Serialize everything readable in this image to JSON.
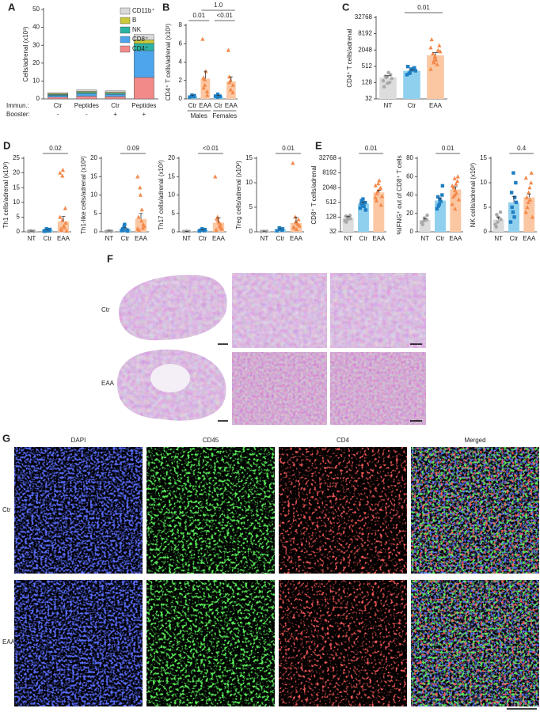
{
  "chart_data": [
    {
      "type": "stackedbar",
      "panel": "A",
      "ylabel": "Cells/adrenal (x10³)",
      "ylim": [
        0,
        50
      ],
      "yticks": [
        0,
        10,
        20,
        30,
        40,
        50
      ],
      "categories": [
        "Ctr",
        "Peptides",
        "Ctr",
        "Peptides"
      ],
      "row_labels": [
        "Immun.:",
        "Booster:"
      ],
      "booster": [
        "-",
        "-",
        "+",
        "+"
      ],
      "legend": "upper right",
      "series": [
        {
          "name": "CD4⁺",
          "color": "#f28a8a",
          "values": [
            1,
            1.5,
            1.3,
            12
          ]
        },
        {
          "name": "CD8⁺",
          "color": "#4da6ec",
          "values": [
            1,
            1.5,
            1.3,
            15
          ]
        },
        {
          "name": "NK",
          "color": "#2bb3a3",
          "values": [
            0.5,
            0.7,
            0.6,
            4
          ]
        },
        {
          "name": "B",
          "color": "#c9c93a",
          "values": [
            0.5,
            0.5,
            0.5,
            2
          ]
        },
        {
          "name": "CD11b⁺",
          "color": "#d9d9d9",
          "values": [
            0.5,
            0.8,
            0.8,
            3
          ]
        }
      ]
    },
    {
      "type": "bar",
      "panel": "B",
      "ylabel": "CD4⁺ T cells/adrenal (x10³)",
      "ylim": [
        0,
        8
      ],
      "yticks": [
        0,
        2,
        4,
        6,
        8
      ],
      "categories": [
        "Ctr",
        "EAA",
        "Ctr",
        "EAA"
      ],
      "groups": [
        "Males",
        "Females"
      ],
      "values": [
        0.3,
        2.2,
        0.3,
        1.9
      ],
      "errors": [
        0.1,
        0.8,
        0.1,
        0.5
      ],
      "bar_colors": [
        "#8fd0ee",
        "#fbc7a2",
        "#8fd0ee",
        "#fbc7a2"
      ],
      "point_colors": [
        "#1f7fc4",
        "#f4894b",
        "#1f7fc4",
        "#f4894b"
      ],
      "markers": [
        "square",
        "triangle",
        "square",
        "triangle"
      ],
      "points": [
        [
          0.2,
          0.3,
          0.4,
          0.25,
          0.35
        ],
        [
          6.5,
          2.1,
          1.5,
          0.8,
          0.4,
          2.3,
          1.2,
          3.0
        ],
        [
          0.3,
          0.2,
          0.5,
          0.3,
          0.25
        ],
        [
          5.3,
          2.0,
          1.0,
          0.7,
          1.5,
          2.4,
          1.8
        ]
      ],
      "annotations": [
        {
          "text": "0.01",
          "between": [
            0,
            1
          ]
        },
        {
          "text": "<0.01",
          "between": [
            2,
            3
          ]
        },
        {
          "text": "1.0",
          "between": [
            1,
            3
          ]
        }
      ]
    },
    {
      "type": "bar",
      "panel": "C",
      "ylabel": "CD4⁺ T cells/adrenal",
      "log_scale": true,
      "log_base": 2,
      "ylim": [
        32,
        32768
      ],
      "yticks": [
        32,
        128,
        512,
        2048,
        8192,
        32768
      ],
      "categories": [
        "NT",
        "Ctr",
        "EAA"
      ],
      "values": [
        200,
        350,
        1300
      ],
      "errors": [
        30,
        30,
        350
      ],
      "bar_colors": [
        "#dcdcdc",
        "#8fd0ee",
        "#fbc7a2"
      ],
      "point_colors": [
        "#a8a8a8",
        "#1f7fc4",
        "#f4894b"
      ],
      "markers": [
        "circle",
        "square",
        "triangle"
      ],
      "points": [
        [
          150,
          200,
          120,
          250,
          180,
          90,
          220,
          300,
          130
        ],
        [
          250,
          300,
          400,
          450,
          350,
          500,
          280,
          380,
          420
        ],
        [
          400,
          800,
          1200,
          2000,
          3000,
          5000,
          1500,
          900,
          600,
          1800,
          2500,
          700,
          1100
        ]
      ],
      "annotations": [
        {
          "text": "0.01",
          "between": [
            1,
            2
          ]
        }
      ]
    },
    {
      "type": "bar",
      "panel": "D",
      "ylabel": "Th1 cells/adrenal (x10²)",
      "ylim": [
        0,
        25
      ],
      "yticks": [
        0,
        5,
        10,
        15,
        20,
        25
      ],
      "categories": [
        "NT",
        "Ctr",
        "EAA"
      ],
      "values": [
        0.2,
        0.5,
        3.5
      ],
      "errors": [
        0.05,
        0.1,
        1.7
      ],
      "bar_colors": [
        "#dcdcdc",
        "#8fd0ee",
        "#fbc7a2"
      ],
      "point_colors": [
        "#a8a8a8",
        "#1f7fc4",
        "#f4894b"
      ],
      "markers": [
        "circle",
        "square",
        "triangle"
      ],
      "points": [
        [
          0.1,
          0.2,
          0.3,
          0.1,
          0.2,
          0.3,
          0.1
        ],
        [
          0.2,
          1.0,
          0.5,
          0.3,
          0.8,
          0.4,
          0.2,
          0.6
        ],
        [
          20,
          19,
          21,
          8,
          3,
          1,
          0.5,
          2,
          1.5,
          0.3,
          5,
          4
        ]
      ],
      "annotations": [
        {
          "text": "0.02",
          "between": [
            1,
            2
          ]
        }
      ]
    },
    {
      "type": "bar",
      "ylabel": "Th1-like cells/adrenal (x10²)",
      "ylim": [
        0,
        20
      ],
      "yticks": [
        0,
        5,
        10,
        15,
        20
      ],
      "categories": [
        "NT",
        "Ctr",
        "EAA"
      ],
      "values": [
        0.2,
        0.8,
        3.5
      ],
      "errors": [
        0.05,
        0.3,
        1.5
      ],
      "bar_colors": [
        "#dcdcdc",
        "#8fd0ee",
        "#fbc7a2"
      ],
      "point_colors": [
        "#a8a8a8",
        "#1f7fc4",
        "#f4894b"
      ],
      "markers": [
        "circle",
        "square",
        "triangle"
      ],
      "points": [
        [
          0.1,
          0.2,
          0.3,
          0.1,
          0.2,
          0.1
        ],
        [
          0.3,
          1.5,
          2,
          0.5,
          0.2,
          0.8,
          0.4
        ],
        [
          15,
          12,
          10,
          1,
          2,
          4,
          0.5,
          3,
          6,
          1.5,
          0.8
        ]
      ],
      "annotations": [
        {
          "text": "0.09",
          "between": [
            1,
            2
          ]
        }
      ]
    },
    {
      "type": "bar",
      "ylabel": "Th17 cells/adrenal (x10²)",
      "ylim": [
        0,
        20
      ],
      "yticks": [
        0,
        5,
        10,
        15,
        20
      ],
      "categories": [
        "NT",
        "Ctr",
        "EAA"
      ],
      "values": [
        0.1,
        0.4,
        2.5
      ],
      "errors": [
        0.02,
        0.1,
        1.3
      ],
      "bar_colors": [
        "#dcdcdc",
        "#8fd0ee",
        "#fbc7a2"
      ],
      "point_colors": [
        "#a8a8a8",
        "#1f7fc4",
        "#f4894b"
      ],
      "markers": [
        "circle",
        "square",
        "triangle"
      ],
      "points": [
        [
          0.1,
          0.1,
          0.2,
          0.1,
          0.1
        ],
        [
          0.2,
          0.5,
          0.8,
          0.3,
          0.6,
          0.4
        ],
        [
          15,
          4,
          3,
          2,
          1,
          0.5,
          3.5,
          2.5,
          1.5,
          0.8
        ]
      ],
      "annotations": [
        {
          "text": "<0.01",
          "between": [
            1,
            2
          ]
        }
      ]
    },
    {
      "type": "bar",
      "ylabel": "Treg cells/adrenal (x10²)",
      "ylim": [
        0,
        15
      ],
      "yticks": [
        0,
        5,
        10,
        15
      ],
      "categories": [
        "NT",
        "Ctr",
        "EAA"
      ],
      "values": [
        0.1,
        0.5,
        1.8
      ],
      "errors": [
        0.02,
        0.1,
        1.2
      ],
      "bar_colors": [
        "#dcdcdc",
        "#8fd0ee",
        "#fbc7a2"
      ],
      "point_colors": [
        "#a8a8a8",
        "#1f7fc4",
        "#f4894b"
      ],
      "markers": [
        "circle",
        "square",
        "triangle"
      ],
      "points": [
        [
          0.05,
          0.1,
          0.1,
          0.05,
          0.1
        ],
        [
          0.2,
          0.8,
          0.5,
          0.3,
          0.6
        ],
        [
          14,
          3,
          2,
          1.5,
          2.5,
          1,
          0.8,
          0.5,
          1.8,
          1.2
        ]
      ],
      "annotations": [
        {
          "text": "0.01",
          "between": [
            1,
            2
          ]
        }
      ]
    },
    {
      "type": "bar",
      "panel": "E",
      "ylabel": "CD8⁺ T cells/adrenal",
      "log_scale": true,
      "log_base": 2,
      "ylim": [
        32,
        32768
      ],
      "yticks": [
        32,
        128,
        512,
        2048,
        8192,
        32768
      ],
      "categories": [
        "NT",
        "Ctr",
        "EAA"
      ],
      "values": [
        120,
        450,
        1300
      ],
      "errors": [
        15,
        80,
        300
      ],
      "bar_colors": [
        "#dcdcdc",
        "#8fd0ee",
        "#fbc7a2"
      ],
      "point_colors": [
        "#a8a8a8",
        "#1f7fc4",
        "#f4894b"
      ],
      "markers": [
        "circle",
        "square",
        "triangle"
      ],
      "points": [
        [
          90,
          100,
          130,
          150,
          110,
          140,
          80
        ],
        [
          300,
          400,
          700,
          500,
          250,
          450,
          600,
          350
        ],
        [
          800,
          1500,
          3000,
          2000,
          400,
          600,
          1200,
          4000,
          1800,
          900,
          2500
        ]
      ],
      "annotations": [
        {
          "text": "0.01",
          "between": [
            1,
            2
          ]
        }
      ]
    },
    {
      "type": "bar",
      "ylabel": "%IFNG⁺ out of CD8⁺ T cells",
      "ylim": [
        0,
        80
      ],
      "yticks": [
        0,
        20,
        40,
        60,
        80
      ],
      "categories": [
        "NT",
        "Ctr",
        "EAA"
      ],
      "values": [
        13,
        34,
        46
      ],
      "errors": [
        1.5,
        3,
        3
      ],
      "bar_colors": [
        "#dcdcdc",
        "#8fd0ee",
        "#fbc7a2"
      ],
      "point_colors": [
        "#a8a8a8",
        "#1f7fc4",
        "#f4894b"
      ],
      "markers": [
        "circle",
        "square",
        "triangle"
      ],
      "points": [
        [
          10,
          12,
          15,
          13,
          18,
          8
        ],
        [
          25,
          30,
          35,
          40,
          50,
          38,
          28,
          33
        ],
        [
          30,
          40,
          45,
          55,
          60,
          38,
          48,
          52,
          42,
          35,
          50,
          58,
          25
        ]
      ],
      "annotations": [
        {
          "text": "0.01",
          "between": [
            1,
            2
          ]
        }
      ]
    },
    {
      "type": "bar",
      "ylabel": "NK cells/adrenal (x10²)",
      "ylim": [
        0,
        15
      ],
      "yticks": [
        0,
        5,
        10,
        15
      ],
      "categories": [
        "NT",
        "Ctr",
        "EAA"
      ],
      "values": [
        2.5,
        6,
        7
      ],
      "errors": [
        0.5,
        1.2,
        0.7
      ],
      "bar_colors": [
        "#dcdcdc",
        "#8fd0ee",
        "#fbc7a2"
      ],
      "point_colors": [
        "#a8a8a8",
        "#1f7fc4",
        "#f4894b"
      ],
      "markers": [
        "circle",
        "square",
        "triangle"
      ],
      "points": [
        [
          1.5,
          2,
          3,
          4,
          2.5,
          1,
          3.5
        ],
        [
          2,
          4,
          12,
          10,
          6,
          8,
          5,
          3,
          7
        ],
        [
          4,
          6,
          8,
          10,
          12,
          7,
          5,
          9,
          6.5,
          3,
          11
        ]
      ],
      "annotations": [
        {
          "text": "0.4",
          "between": [
            1,
            2
          ]
        }
      ]
    }
  ],
  "histology": {
    "panel": "F",
    "rows": [
      "Ctr",
      "EAA"
    ]
  },
  "immunofluorescence": {
    "panel": "G",
    "columns": [
      "DAPI",
      "CD45",
      "CD4",
      "Merged"
    ],
    "rows": [
      "Ctr",
      "EAA"
    ]
  }
}
